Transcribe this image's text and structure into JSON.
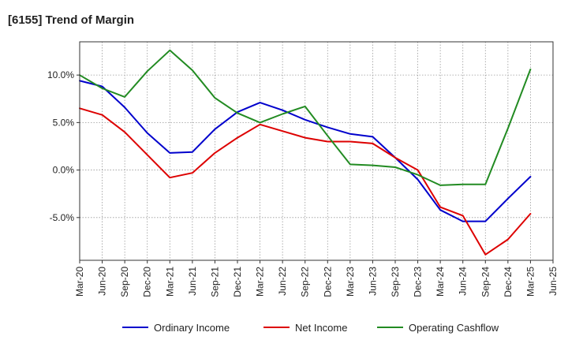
{
  "chart_data": {
    "type": "line",
    "title": "[6155]  Trend of Margin",
    "xlabel": "",
    "ylabel": "",
    "x": [
      "Mar-20",
      "Jun-20",
      "Sep-20",
      "Dec-20",
      "Mar-21",
      "Jun-21",
      "Sep-21",
      "Dec-21",
      "Mar-22",
      "Jun-22",
      "Sep-22",
      "Dec-22",
      "Mar-23",
      "Jun-23",
      "Sep-23",
      "Dec-23",
      "Mar-24",
      "Jun-24",
      "Sep-24",
      "Dec-24",
      "Mar-25",
      "Jun-25"
    ],
    "ylim": [
      -9.5,
      13.5
    ],
    "yticks": [
      -5.0,
      0.0,
      5.0,
      10.0
    ],
    "ytick_labels": [
      "-5.0%",
      "0.0%",
      "5.0%",
      "10.0%"
    ],
    "grid": true,
    "legend_position": "bottom",
    "series": [
      {
        "name": "Ordinary Income",
        "color": "#0000cc",
        "values": [
          9.4,
          8.8,
          6.6,
          3.9,
          1.8,
          1.9,
          4.3,
          6.1,
          7.1,
          6.3,
          5.3,
          4.5,
          3.8,
          3.5,
          1.3,
          -1.0,
          -4.2,
          -5.4,
          -5.4,
          -3.0,
          -0.7,
          null
        ]
      },
      {
        "name": "Net Income",
        "color": "#dd0000",
        "values": [
          6.5,
          5.8,
          4.0,
          1.6,
          -0.8,
          -0.3,
          1.8,
          3.4,
          4.8,
          4.1,
          3.4,
          3.0,
          3.0,
          2.8,
          1.3,
          0.0,
          -3.9,
          -4.8,
          -8.9,
          -7.3,
          -4.6,
          null
        ]
      },
      {
        "name": "Operating Cashflow",
        "color": "#228b22",
        "values": [
          10.0,
          8.6,
          7.7,
          10.4,
          12.6,
          10.5,
          7.6,
          6.0,
          5.0,
          5.9,
          6.7,
          3.6,
          0.6,
          0.5,
          0.3,
          -0.5,
          -1.6,
          -1.5,
          -1.5,
          4.4,
          10.6,
          null
        ]
      }
    ]
  }
}
